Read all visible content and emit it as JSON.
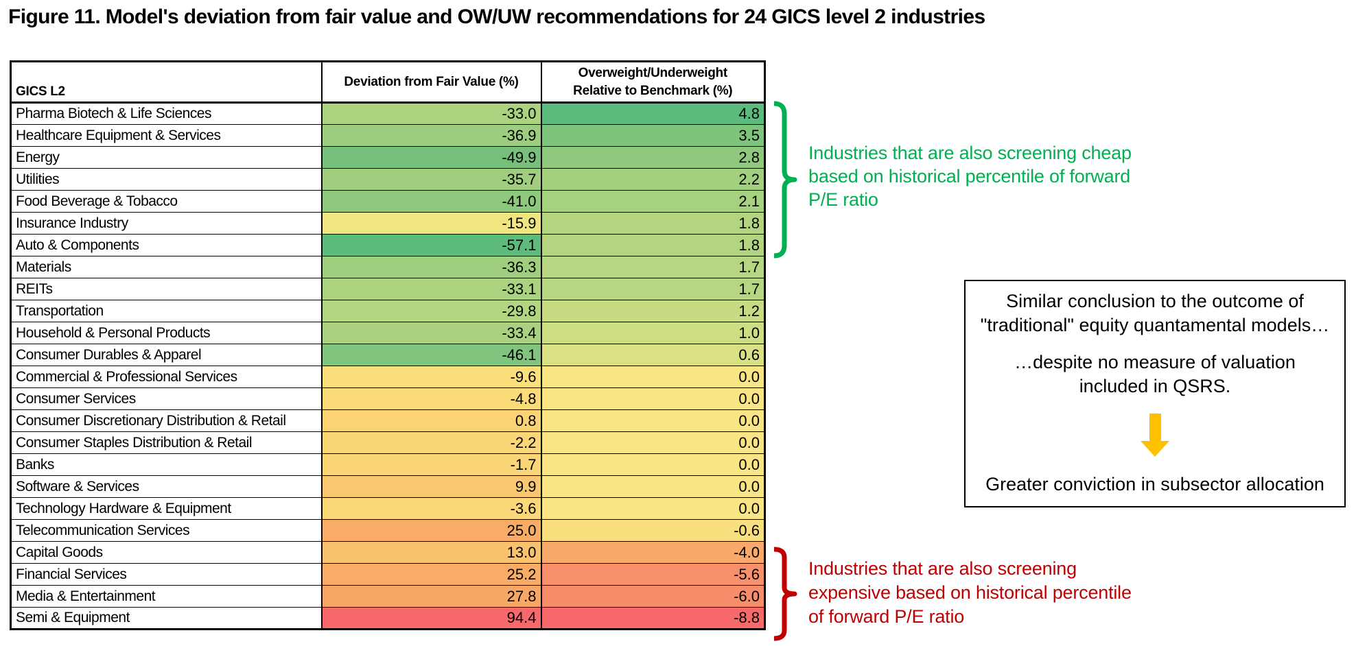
{
  "title": "Figure 11. Model's deviation from fair value and OW/UW recommendations for 24 GICS level 2 industries",
  "table": {
    "headers": {
      "col1": "GICS L2",
      "col2": "Deviation from Fair Value (%)",
      "col3": [
        "Overweight/Underweight",
        "Relative to Benchmark (%)"
      ]
    },
    "rows": [
      {
        "industry": "Pharma Biotech & Life Sciences",
        "deviation": "-33.0",
        "ow_uw": "4.8",
        "deviation_color": "#ABD27F",
        "ow_uw_color": "#5BBC7D"
      },
      {
        "industry": "Healthcare Equipment & Services",
        "deviation": "-36.9",
        "ow_uw": "3.5",
        "deviation_color": "#9DCD7E",
        "ow_uw_color": "#7EC47D"
      },
      {
        "industry": "Energy",
        "deviation": "-49.9",
        "ow_uw": "2.8",
        "deviation_color": "#77C07C",
        "ow_uw_color": "#90C97E"
      },
      {
        "industry": "Utilities",
        "deviation": "-35.7",
        "ow_uw": "2.2",
        "deviation_color": "#A0CE7E",
        "ow_uw_color": "#A3D07F"
      },
      {
        "industry": "Food Beverage & Tobacco",
        "deviation": "-41.0",
        "ow_uw": "2.1",
        "deviation_color": "#8EC87D",
        "ow_uw_color": "#A6D17F"
      },
      {
        "industry": "Insurance Industry",
        "deviation": "-15.9",
        "ow_uw": "1.8",
        "deviation_color": "#F0E681",
        "ow_uw_color": "#B4D580"
      },
      {
        "industry": "Auto &  Components",
        "deviation": "-57.1",
        "ow_uw": "1.8",
        "deviation_color": "#5DBC7B",
        "ow_uw_color": "#B4D580"
      },
      {
        "industry": "Materials",
        "deviation": "-36.3",
        "ow_uw": "1.7",
        "deviation_color": "#9ECE7E",
        "ow_uw_color": "#B7D681"
      },
      {
        "industry": "REITs",
        "deviation": "-33.1",
        "ow_uw": "1.7",
        "deviation_color": "#AAD27F",
        "ow_uw_color": "#B7D681"
      },
      {
        "industry": "Transportation",
        "deviation": "-29.8",
        "ow_uw": "1.2",
        "deviation_color": "#B2D580",
        "ow_uw_color": "#C6DB82"
      },
      {
        "industry": "Household & Personal Products",
        "deviation": "-33.4",
        "ow_uw": "1.0",
        "deviation_color": "#A9D17F",
        "ow_uw_color": "#CCDD82"
      },
      {
        "industry": "Consumer Durables & Apparel",
        "deviation": "-46.1",
        "ow_uw": "0.6",
        "deviation_color": "#80C47D",
        "ow_uw_color": "#D9E184"
      },
      {
        "industry": "Commercial & Professional Services",
        "deviation": "-9.6",
        "ow_uw": "0.0",
        "deviation_color": "#FBDF7A",
        "ow_uw_color": "#F9E583"
      },
      {
        "industry": "Consumer Services",
        "deviation": "-4.8",
        "ow_uw": "0.0",
        "deviation_color": "#FBDA78",
        "ow_uw_color": "#F9E583"
      },
      {
        "industry": "Consumer Discretionary Distribution & Retail",
        "deviation": "0.8",
        "ow_uw": "0.0",
        "deviation_color": "#FAD375",
        "ow_uw_color": "#F9E583"
      },
      {
        "industry": "Consumer Staples Distribution & Retail",
        "deviation": "-2.2",
        "ow_uw": "0.0",
        "deviation_color": "#FAD776",
        "ow_uw_color": "#F9E583"
      },
      {
        "industry": "Banks",
        "deviation": "-1.7",
        "ow_uw": "0.0",
        "deviation_color": "#FAD676",
        "ow_uw_color": "#F9E583"
      },
      {
        "industry": "Software & Services",
        "deviation": "9.9",
        "ow_uw": "0.0",
        "deviation_color": "#F9C76F",
        "ow_uw_color": "#F9E583"
      },
      {
        "industry": "Technology Hardware & Equipment",
        "deviation": "-3.6",
        "ow_uw": "0.0",
        "deviation_color": "#FBD877",
        "ow_uw_color": "#F9E583"
      },
      {
        "industry": "Telecommunication Services",
        "deviation": "25.0",
        "ow_uw": "-0.6",
        "deviation_color": "#F8AC66",
        "ow_uw_color": "#FADF7E"
      },
      {
        "industry": "Capital Goods",
        "deviation": "13.0",
        "ow_uw": "-4.0",
        "deviation_color": "#F9C26D",
        "ow_uw_color": "#F9A96A"
      },
      {
        "industry": "Financial Services",
        "deviation": "25.2",
        "ow_uw": "-5.6",
        "deviation_color": "#F8AC66",
        "ow_uw_color": "#F8906C"
      },
      {
        "industry": "Media & Entertainment",
        "deviation": "27.8",
        "ow_uw": "-6.0",
        "deviation_color": "#F8A864",
        "ow_uw_color": "#F88D6B"
      },
      {
        "industry": "Semi & Equipment",
        "deviation": "94.4",
        "ow_uw": "-8.8",
        "deviation_color": "#F8696B",
        "ow_uw_color": "#F8696B"
      }
    ]
  },
  "annotations": {
    "cheap": {
      "color": "#00B050",
      "lines": [
        "Industries that are also screening cheap",
        "based on historical percentile of forward",
        "P/E ratio"
      ]
    },
    "expensive": {
      "color": "#C00000",
      "lines": [
        "Industries that are also screening",
        "expensive based on historical percentile",
        "of forward P/E ratio"
      ]
    }
  },
  "info_box": {
    "paragraph1": "Similar conclusion to the outcome of \"traditional\" equity quantamental models…",
    "paragraph2": "…despite no measure of valuation included in QSRS.",
    "paragraph3": "Greater conviction in subsector allocation",
    "arrow_icon": "down-arrow",
    "arrow_color": "#FFC000"
  },
  "chart_data": {
    "type": "table",
    "title": "Figure 11. Model's deviation from fair value and OW/UW recommendations for 24 GICS level 2 industries",
    "columns": [
      "GICS L2",
      "Deviation from Fair Value (%)",
      "Overweight/Underweight Relative to Benchmark (%)"
    ],
    "rows": [
      [
        "Pharma Biotech & Life Sciences",
        -33.0,
        4.8
      ],
      [
        "Healthcare Equipment & Services",
        -36.9,
        3.5
      ],
      [
        "Energy",
        -49.9,
        2.8
      ],
      [
        "Utilities",
        -35.7,
        2.2
      ],
      [
        "Food Beverage & Tobacco",
        -41.0,
        2.1
      ],
      [
        "Insurance Industry",
        -15.9,
        1.8
      ],
      [
        "Auto & Components",
        -57.1,
        1.8
      ],
      [
        "Materials",
        -36.3,
        1.7
      ],
      [
        "REITs",
        -33.1,
        1.7
      ],
      [
        "Transportation",
        -29.8,
        1.2
      ],
      [
        "Household & Personal Products",
        -33.4,
        1.0
      ],
      [
        "Consumer Durables & Apparel",
        -46.1,
        0.6
      ],
      [
        "Commercial & Professional Services",
        -9.6,
        0.0
      ],
      [
        "Consumer Services",
        -4.8,
        0.0
      ],
      [
        "Consumer Discretionary Distribution & Retail",
        0.8,
        0.0
      ],
      [
        "Consumer Staples Distribution & Retail",
        -2.2,
        0.0
      ],
      [
        "Banks",
        -1.7,
        0.0
      ],
      [
        "Software & Services",
        9.9,
        0.0
      ],
      [
        "Technology Hardware & Equipment",
        -3.6,
        0.0
      ],
      [
        "Telecommunication Services",
        25.0,
        -0.6
      ],
      [
        "Capital Goods",
        13.0,
        -4.0
      ],
      [
        "Financial Services",
        25.2,
        -5.6
      ],
      [
        "Media & Entertainment",
        27.8,
        -6.0
      ],
      [
        "Semi & Equipment",
        94.4,
        -8.8
      ]
    ],
    "color_scale": {
      "low_green": "#63BE7B",
      "mid_yellow": "#FFEB84",
      "high_red": "#F8696B"
    },
    "notes": "Cells color-coded green (cheap / overweight) to red (expensive / underweight)"
  }
}
